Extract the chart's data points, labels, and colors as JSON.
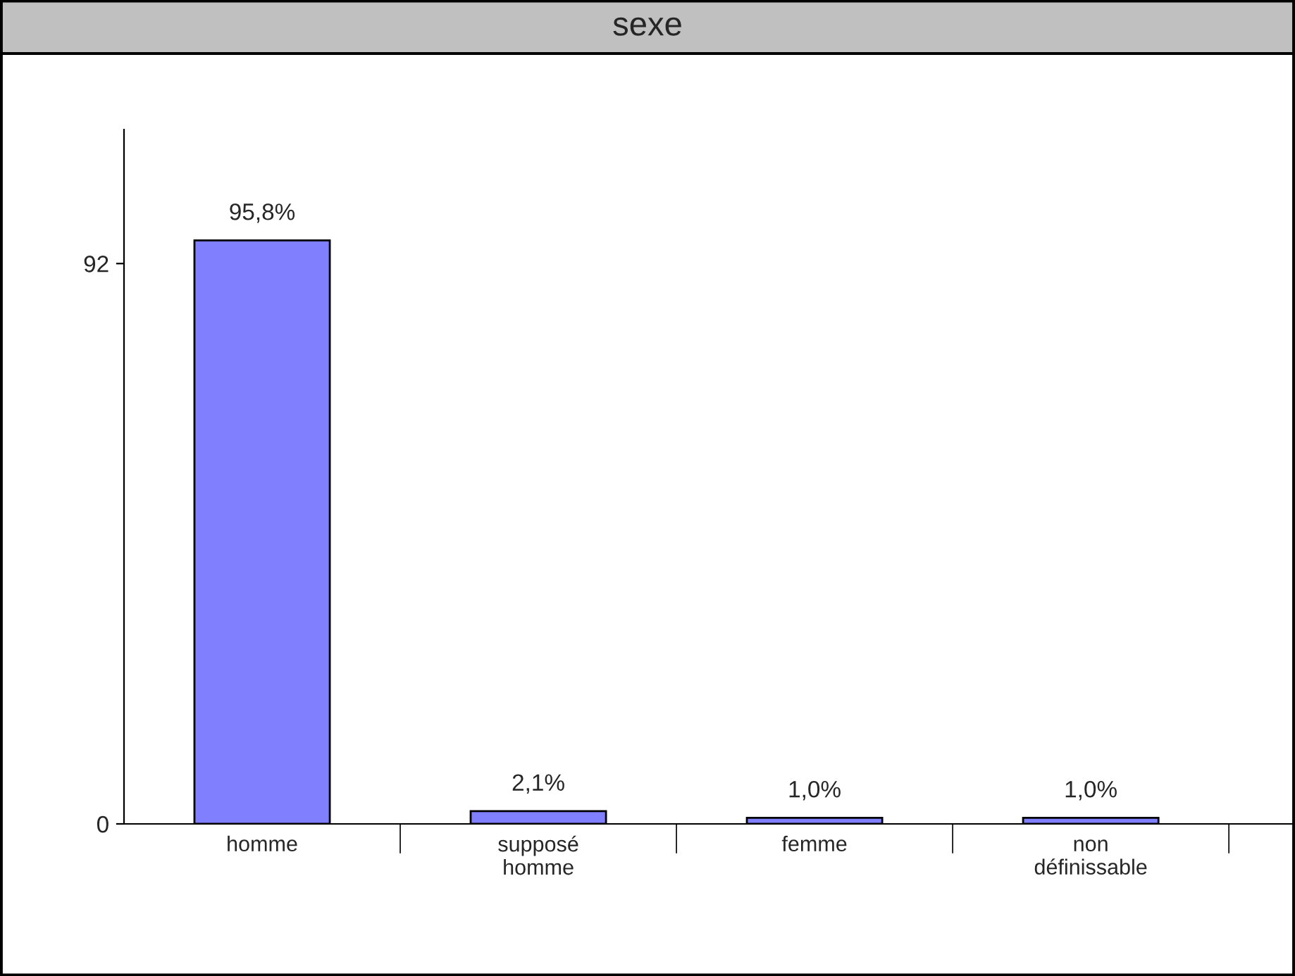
{
  "chart_data": {
    "type": "bar",
    "title": "sexe",
    "categories": [
      "homme",
      "supposé\nhomme",
      "femme",
      "non\ndéfinissable"
    ],
    "values": [
      95.8,
      2.1,
      1.0,
      1.0
    ],
    "value_labels": [
      "95,8%",
      "2,1%",
      "1,0%",
      "1,0%"
    ],
    "color": "#8080ff",
    "ylim": [
      0,
      114
    ],
    "yticks": [
      0,
      92
    ]
  }
}
